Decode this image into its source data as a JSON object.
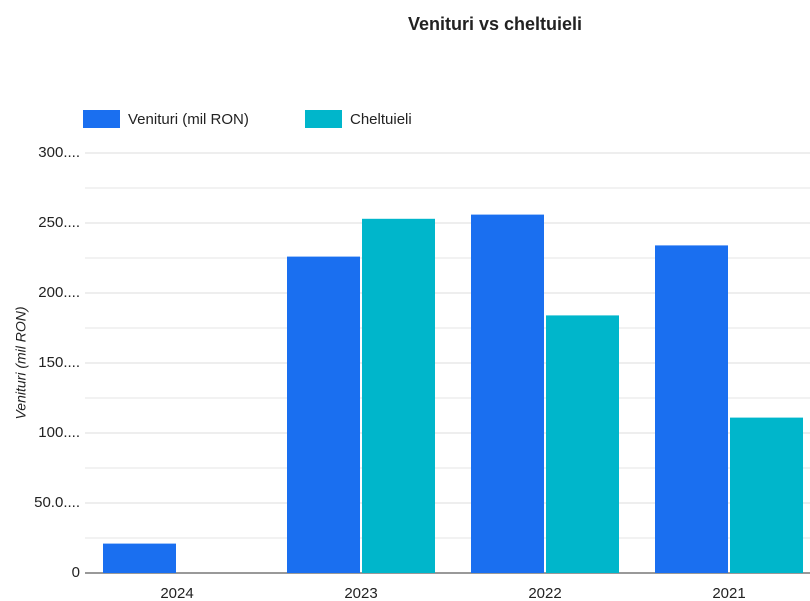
{
  "chart_data": {
    "type": "bar",
    "title": "Venituri vs cheltuieli",
    "y_label": "Venituri (mil RON)",
    "categories": [
      "2024",
      "2023",
      "2022",
      "2021"
    ],
    "series": [
      {
        "name": "Venituri (mil RON)",
        "color": "#1a6ff0",
        "values": [
          21,
          226,
          256,
          234
        ]
      },
      {
        "name": "Cheltuieli",
        "color": "#00b6cb",
        "values": [
          null,
          253,
          184,
          111
        ]
      }
    ],
    "ylim": [
      0,
      300
    ],
    "yticks": [
      0,
      {
        "value": 50,
        "label": "50.0...."
      },
      {
        "value": 100,
        "label": "100...."
      },
      {
        "value": 150,
        "label": "150...."
      },
      {
        "value": 200,
        "label": "200...."
      },
      {
        "value": 250,
        "label": "250...."
      },
      {
        "value": 300,
        "label": "300...."
      }
    ],
    "minor_yticks": [
      25,
      75,
      125,
      175,
      225,
      275
    ],
    "grid": true,
    "legend": "top-left"
  }
}
